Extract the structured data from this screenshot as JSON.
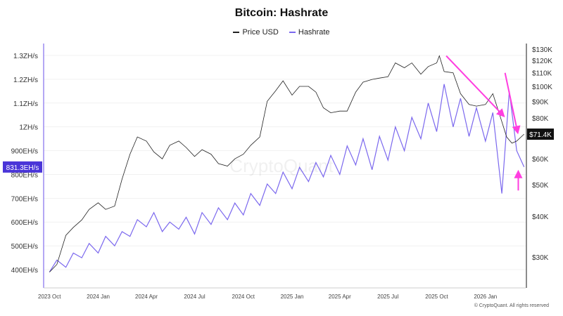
{
  "chart_data": {
    "type": "line",
    "title": "Bitcoin: Hashrate",
    "legend_placement": "top-center",
    "grid": true,
    "x_ticks": [
      "2023 Oct",
      "2024 Jan",
      "2024 Apr",
      "2024 Jul",
      "2024 Oct",
      "2025 Jan",
      "2025 Apr",
      "2025 Jul",
      "2025 Oct",
      "2026 Jan"
    ],
    "x_tick_dates": [
      "2023-10-01",
      "2024-01-01",
      "2024-04-01",
      "2024-07-01",
      "2024-10-01",
      "2025-01-01",
      "2025-04-01",
      "2025-07-01",
      "2025-10-01",
      "2026-01-01"
    ],
    "xlim": [
      "2023-09-20",
      "2026-03-18"
    ],
    "left_axis": {
      "unit": "EH/s",
      "scale": "linear",
      "ylim": [
        350,
        1350
      ],
      "ticks": [
        400,
        500,
        600,
        700,
        800,
        900,
        1000,
        1100,
        1200,
        1300
      ],
      "tick_labels": [
        "400EH/s",
        "500EH/s",
        "600EH/s",
        "700EH/s",
        "800EH/s",
        "900EH/s",
        "1ZH/s",
        "1.1ZH/s",
        "1.2ZH/s",
        "1.3ZH/s"
      ]
    },
    "right_axis": {
      "unit": "USD",
      "scale": "log",
      "ylim": [
        22000,
        135000
      ],
      "ticks": [
        30000,
        40000,
        50000,
        60000,
        80000,
        90000,
        100000,
        110000,
        120000,
        130000
      ],
      "tick_labels": [
        "$30K",
        "$40K",
        "$50K",
        "$60K",
        "$80K",
        "$90K",
        "$100K",
        "$110K",
        "$120K",
        "$130K"
      ]
    },
    "series": [
      {
        "name": "Price USD",
        "axis": "right",
        "color": "#222222",
        "x": [
          "2023-10-01",
          "2023-10-15",
          "2023-11-01",
          "2023-11-15",
          "2023-12-01",
          "2023-12-15",
          "2024-01-01",
          "2024-01-15",
          "2024-02-01",
          "2024-02-15",
          "2024-03-01",
          "2024-03-15",
          "2024-04-01",
          "2024-04-15",
          "2024-05-01",
          "2024-05-15",
          "2024-06-01",
          "2024-06-15",
          "2024-07-01",
          "2024-07-15",
          "2024-08-01",
          "2024-08-15",
          "2024-09-01",
          "2024-09-15",
          "2024-10-01",
          "2024-10-15",
          "2024-11-01",
          "2024-11-15",
          "2024-12-01",
          "2024-12-15",
          "2025-01-01",
          "2025-01-15",
          "2025-02-01",
          "2025-02-15",
          "2025-03-01",
          "2025-03-15",
          "2025-04-01",
          "2025-04-15",
          "2025-05-01",
          "2025-05-15",
          "2025-06-01",
          "2025-06-15",
          "2025-07-01",
          "2025-07-15",
          "2025-08-01",
          "2025-08-15",
          "2025-09-01",
          "2025-09-15",
          "2025-10-01",
          "2025-10-06",
          "2025-10-15",
          "2025-11-01",
          "2025-11-15",
          "2025-12-01",
          "2025-12-15",
          "2026-01-01",
          "2026-01-15",
          "2026-02-01",
          "2026-02-10",
          "2026-02-20",
          "2026-03-01",
          "2026-03-15"
        ],
        "values": [
          27000,
          28500,
          35000,
          37000,
          39000,
          42000,
          44000,
          42000,
          43000,
          52000,
          62000,
          70000,
          68000,
          63000,
          60000,
          66000,
          68000,
          65000,
          61000,
          64000,
          62000,
          58000,
          57000,
          60000,
          62000,
          66000,
          70000,
          90000,
          97000,
          104000,
          94000,
          100000,
          100000,
          96000,
          86000,
          83000,
          84000,
          84000,
          96000,
          103000,
          105000,
          106000,
          107000,
          118000,
          114000,
          118000,
          109000,
          115000,
          118000,
          124000,
          111000,
          110000,
          95000,
          88000,
          87000,
          88000,
          95000,
          78000,
          70000,
          67000,
          68000,
          71400
        ]
      },
      {
        "name": "Hashrate",
        "axis": "left",
        "color": "#7b68ee",
        "x": [
          "2023-10-01",
          "2023-10-15",
          "2023-11-01",
          "2023-11-15",
          "2023-12-01",
          "2023-12-15",
          "2024-01-01",
          "2024-01-15",
          "2024-02-01",
          "2024-02-15",
          "2024-03-01",
          "2024-03-15",
          "2024-04-01",
          "2024-04-15",
          "2024-05-01",
          "2024-05-15",
          "2024-06-01",
          "2024-06-15",
          "2024-07-01",
          "2024-07-15",
          "2024-08-01",
          "2024-08-15",
          "2024-09-01",
          "2024-09-15",
          "2024-10-01",
          "2024-10-15",
          "2024-11-01",
          "2024-11-15",
          "2024-12-01",
          "2024-12-15",
          "2025-01-01",
          "2025-01-15",
          "2025-02-01",
          "2025-02-15",
          "2025-03-01",
          "2025-03-15",
          "2025-04-01",
          "2025-04-15",
          "2025-05-01",
          "2025-05-15",
          "2025-06-01",
          "2025-06-15",
          "2025-07-01",
          "2025-07-15",
          "2025-08-01",
          "2025-08-15",
          "2025-09-01",
          "2025-09-15",
          "2025-10-01",
          "2025-10-15",
          "2025-11-01",
          "2025-11-15",
          "2025-12-01",
          "2025-12-15",
          "2026-01-01",
          "2026-01-15",
          "2026-02-01",
          "2026-02-15",
          "2026-03-01",
          "2026-03-15"
        ],
        "values": [
          390,
          440,
          410,
          470,
          450,
          510,
          470,
          540,
          500,
          560,
          540,
          610,
          580,
          640,
          560,
          600,
          570,
          620,
          550,
          640,
          590,
          660,
          610,
          680,
          630,
          720,
          670,
          760,
          720,
          810,
          740,
          830,
          770,
          850,
          790,
          880,
          800,
          920,
          840,
          950,
          820,
          960,
          860,
          1000,
          900,
          1040,
          950,
          1100,
          980,
          1180,
          1000,
          1120,
          960,
          1080,
          940,
          1060,
          720,
          1150,
          900,
          831.3
        ]
      }
    ],
    "crosshair": {
      "left_label": "831.3EH/s",
      "right_label": "$71.4K",
      "left_color": "#4a35d8",
      "right_color": "#111111"
    },
    "annotations": [
      {
        "type": "arrow",
        "color": "#ff3ee0",
        "from": [
          "2025-10-19",
          124000
        ],
        "to": [
          "2026-02-05",
          81000
        ]
      },
      {
        "type": "arrow",
        "color": "#ff3ee0",
        "from": [
          "2026-02-07",
          110000
        ],
        "to": [
          "2026-03-03",
          72000
        ]
      },
      {
        "type": "arrow",
        "color": "#ff3ee0",
        "from": [
          "2026-03-04",
          48000
        ],
        "to": [
          "2026-03-04",
          55000
        ]
      }
    ],
    "watermark": "CryptoQuant"
  },
  "footer": "© CryptoQuant. All rights reserved"
}
